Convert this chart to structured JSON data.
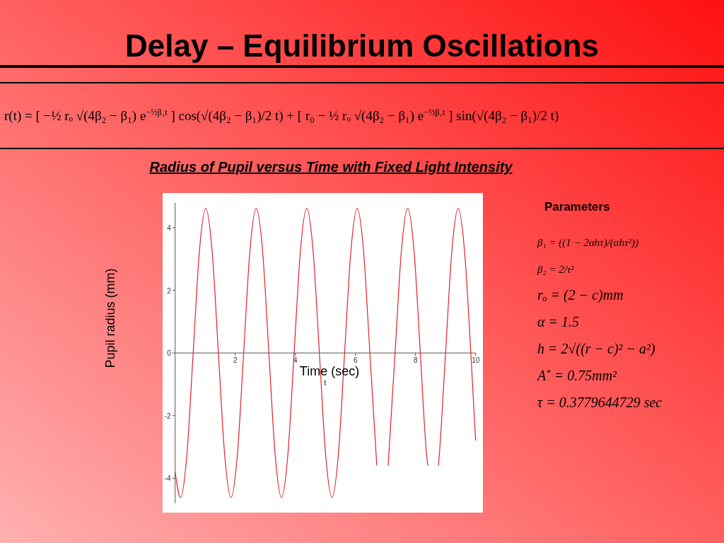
{
  "chart_data": {
    "type": "line",
    "title": "Delay – Equilibrium Oscillations",
    "subtitle": "Radius of Pupil versus Time with Fixed Light Intensity",
    "xlabel": "Time (sec)",
    "ylabel": "Pupil radius (mm)",
    "annotations": [
      "r(t) = [ −½ rₒ √(4β₂ − β₁) e$^{−½β₁t}$ ] cos(√(4β₂ − β₁)/2 t) + [ r₀ − ½ rₒ √(4β₂ − β₁) e$^{−½β₁t}$ ] sin(√(4β₂ − β₁)/2 t)",
      "t",
      "Parameters",
      "β₁ = ((1 − 2αhτ)/(αhτ²))",
      "β₂ = 2/τ²",
      "rₒ = (2 − c)mm",
      "α = 1.5",
      "h = 2√((r − c)² − a²)",
      "A$^{*}$ = 0.75mm²",
      "τ = 0.3779644729 sec"
    ],
    "x": [
      0,
      0.18,
      0.39,
      0.6,
      0.81,
      1.02,
      1.23,
      1.44,
      1.65,
      1.86,
      2.07,
      2.28,
      2.49,
      2.7,
      2.91,
      3.12,
      3.33,
      3.54,
      3.75,
      3.96,
      4.17,
      4.38,
      4.59,
      4.8,
      5.01,
      5.22,
      5.43,
      5.64,
      5.85,
      6.06,
      6.27,
      6.48,
      6.69,
      6.71,
      6.9,
      7.09,
      7.11,
      7.32,
      7.53,
      7.74,
      7.95,
      8.16,
      8.37,
      8.41,
      8.58,
      8.76,
      8.79,
      9.0,
      9.21,
      9.42,
      9.63,
      9.84,
      10
    ],
    "series": [
      {
        "color": "#e0202c",
        "values": [
          -3.8,
          -4.62,
          -3.27,
          0,
          3.27,
          4.62,
          3.27,
          0,
          -3.27,
          -4.62,
          -3.27,
          0,
          3.27,
          4.62,
          3.27,
          0,
          -3.27,
          -4.62,
          -3.27,
          0,
          3.27,
          4.62,
          3.27,
          0,
          -3.27,
          -4.62,
          -3.27,
          0,
          3.27,
          4.62,
          3.27,
          0,
          -3.27,
          -3.6,
          null,
          -3.6,
          -3.27,
          0,
          3.27,
          4.62,
          3.27,
          0,
          -3.27,
          -3.6,
          null,
          -3.6,
          -3.27,
          0,
          3.27,
          4.62,
          3.27,
          0,
          -2.8
        ]
      }
    ],
    "xlim": [
      0,
      10
    ],
    "xticks": [
      2,
      4,
      6,
      8,
      10
    ],
    "ylim": [
      -4.8,
      4.8
    ],
    "yticks": [
      -4,
      -2,
      0,
      2,
      4
    ]
  }
}
